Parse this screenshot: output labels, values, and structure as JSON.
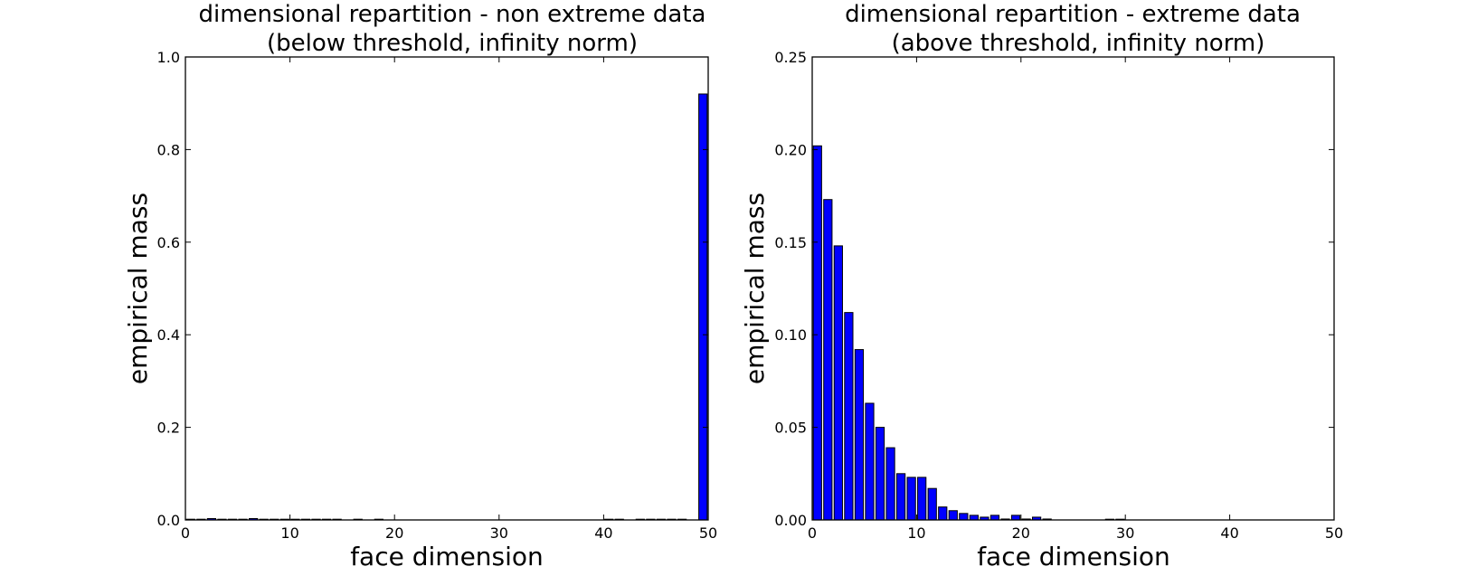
{
  "chart_data": [
    {
      "type": "bar",
      "title_line1": "dimensional repartition - non extreme data",
      "title_line2": "(below threshold, infinity norm)",
      "xlabel": "face dimension",
      "ylabel": "empirical mass",
      "xlim": [
        0,
        50
      ],
      "ylim": [
        0,
        1.0
      ],
      "xticks": [
        "0",
        "10",
        "20",
        "30",
        "40",
        "50"
      ],
      "yticks": [
        "0.0",
        "0.2",
        "0.4",
        "0.6",
        "0.8",
        "1.0"
      ],
      "bar_color": "#0000ff",
      "bars": [
        {
          "x": 0,
          "value": 0.001
        },
        {
          "x": 1,
          "value": 0.001
        },
        {
          "x": 2,
          "value": 0.003
        },
        {
          "x": 3,
          "value": 0.001
        },
        {
          "x": 4,
          "value": 0.001
        },
        {
          "x": 5,
          "value": 0.001
        },
        {
          "x": 6,
          "value": 0.003
        },
        {
          "x": 7,
          "value": 0.001
        },
        {
          "x": 8,
          "value": 0.001
        },
        {
          "x": 9,
          "value": 0.001
        },
        {
          "x": 10,
          "value": 0.001
        },
        {
          "x": 11,
          "value": 0.001
        },
        {
          "x": 12,
          "value": 0.001
        },
        {
          "x": 13,
          "value": 0.001
        },
        {
          "x": 14,
          "value": 0.001
        },
        {
          "x": 16,
          "value": 0.001
        },
        {
          "x": 18,
          "value": 0.001
        },
        {
          "x": 40,
          "value": 0.001
        },
        {
          "x": 41,
          "value": 0.001
        },
        {
          "x": 43,
          "value": 0.001
        },
        {
          "x": 44,
          "value": 0.001
        },
        {
          "x": 45,
          "value": 0.001
        },
        {
          "x": 46,
          "value": 0.001
        },
        {
          "x": 47,
          "value": 0.001
        },
        {
          "x": 49,
          "value": 0.92
        }
      ]
    },
    {
      "type": "bar",
      "title_line1": "dimensional repartition - extreme data",
      "title_line2": "(above threshold, infinity norm)",
      "xlabel": "face dimension",
      "ylabel": "empirical mass",
      "xlim": [
        0,
        50
      ],
      "ylim": [
        0,
        0.25
      ],
      "xticks": [
        "0",
        "10",
        "20",
        "30",
        "40",
        "50"
      ],
      "yticks": [
        "0.00",
        "0.05",
        "0.10",
        "0.15",
        "0.20",
        "0.25"
      ],
      "bar_color": "#0000ff",
      "bars": [
        {
          "x": 0,
          "value": 0.202
        },
        {
          "x": 1,
          "value": 0.173
        },
        {
          "x": 2,
          "value": 0.148
        },
        {
          "x": 3,
          "value": 0.112
        },
        {
          "x": 4,
          "value": 0.092
        },
        {
          "x": 5,
          "value": 0.063
        },
        {
          "x": 6,
          "value": 0.05
        },
        {
          "x": 7,
          "value": 0.039
        },
        {
          "x": 8,
          "value": 0.025
        },
        {
          "x": 9,
          "value": 0.023
        },
        {
          "x": 10,
          "value": 0.023
        },
        {
          "x": 11,
          "value": 0.017
        },
        {
          "x": 12,
          "value": 0.007
        },
        {
          "x": 13,
          "value": 0.005
        },
        {
          "x": 14,
          "value": 0.0035
        },
        {
          "x": 15,
          "value": 0.0025
        },
        {
          "x": 16,
          "value": 0.0015
        },
        {
          "x": 17,
          "value": 0.0025
        },
        {
          "x": 18,
          "value": 0.0005
        },
        {
          "x": 19,
          "value": 0.0025
        },
        {
          "x": 20,
          "value": 0.0005
        },
        {
          "x": 21,
          "value": 0.0015
        },
        {
          "x": 22,
          "value": 0.0005
        },
        {
          "x": 28,
          "value": 0.0003
        },
        {
          "x": 29,
          "value": 0.0003
        }
      ]
    }
  ]
}
